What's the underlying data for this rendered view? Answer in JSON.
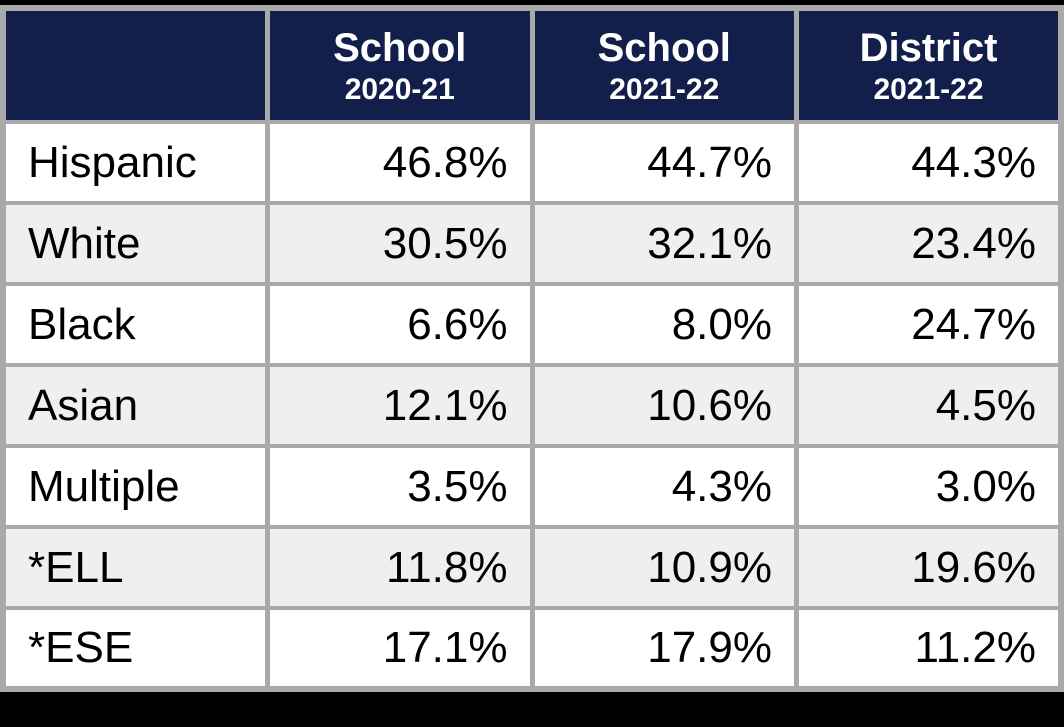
{
  "page": {
    "background_color": "#000000"
  },
  "table": {
    "header": {
      "background_color": "#121f4a",
      "text_color": "#ffffff",
      "columns": [
        {
          "line1": "",
          "line2": ""
        },
        {
          "line1": "School",
          "line2": "2020-21"
        },
        {
          "line1": "School",
          "line2": "2021-22"
        },
        {
          "line1": "District",
          "line2": "2021-22"
        }
      ]
    },
    "rows": [
      {
        "label": "Hispanic",
        "values": [
          "46.8%",
          "44.7%",
          "44.3%"
        ]
      },
      {
        "label": "White",
        "values": [
          "30.5%",
          "32.1%",
          "23.4%"
        ]
      },
      {
        "label": "Black",
        "values": [
          "6.6%",
          "8.0%",
          "24.7%"
        ]
      },
      {
        "label": "Asian",
        "values": [
          "12.1%",
          "10.6%",
          "4.5%"
        ]
      },
      {
        "label": "Multiple",
        "values": [
          "3.5%",
          "4.3%",
          "3.0%"
        ]
      },
      {
        "label": "*ELL",
        "values": [
          "11.8%",
          "10.9%",
          "19.6%"
        ]
      },
      {
        "label": "*ESE",
        "values": [
          "17.1%",
          "17.9%",
          "11.2%"
        ]
      }
    ],
    "colors": {
      "grid": "#a9a9a9",
      "row_default": "#ffffff",
      "row_alt": "#efefef",
      "body_text": "#000000"
    }
  },
  "chart_data": {
    "type": "table",
    "title": "",
    "columns": [
      "",
      "School 2020-21",
      "School 2021-22",
      "District 2021-22"
    ],
    "categories": [
      "Hispanic",
      "White",
      "Black",
      "Asian",
      "Multiple",
      "*ELL",
      "*ESE"
    ],
    "series": [
      {
        "name": "School 2020-21",
        "values": [
          46.8,
          30.5,
          6.6,
          12.1,
          3.5,
          11.8,
          17.1
        ]
      },
      {
        "name": "School 2021-22",
        "values": [
          44.7,
          32.1,
          8.0,
          10.6,
          4.3,
          10.9,
          17.9
        ]
      },
      {
        "name": "District 2021-22",
        "values": [
          44.3,
          23.4,
          24.7,
          4.5,
          3.0,
          19.6,
          11.2
        ]
      }
    ],
    "value_unit": "%",
    "layout_hints": {
      "header_background": "#121f4a",
      "alternating_rows": true,
      "grid": true
    }
  }
}
